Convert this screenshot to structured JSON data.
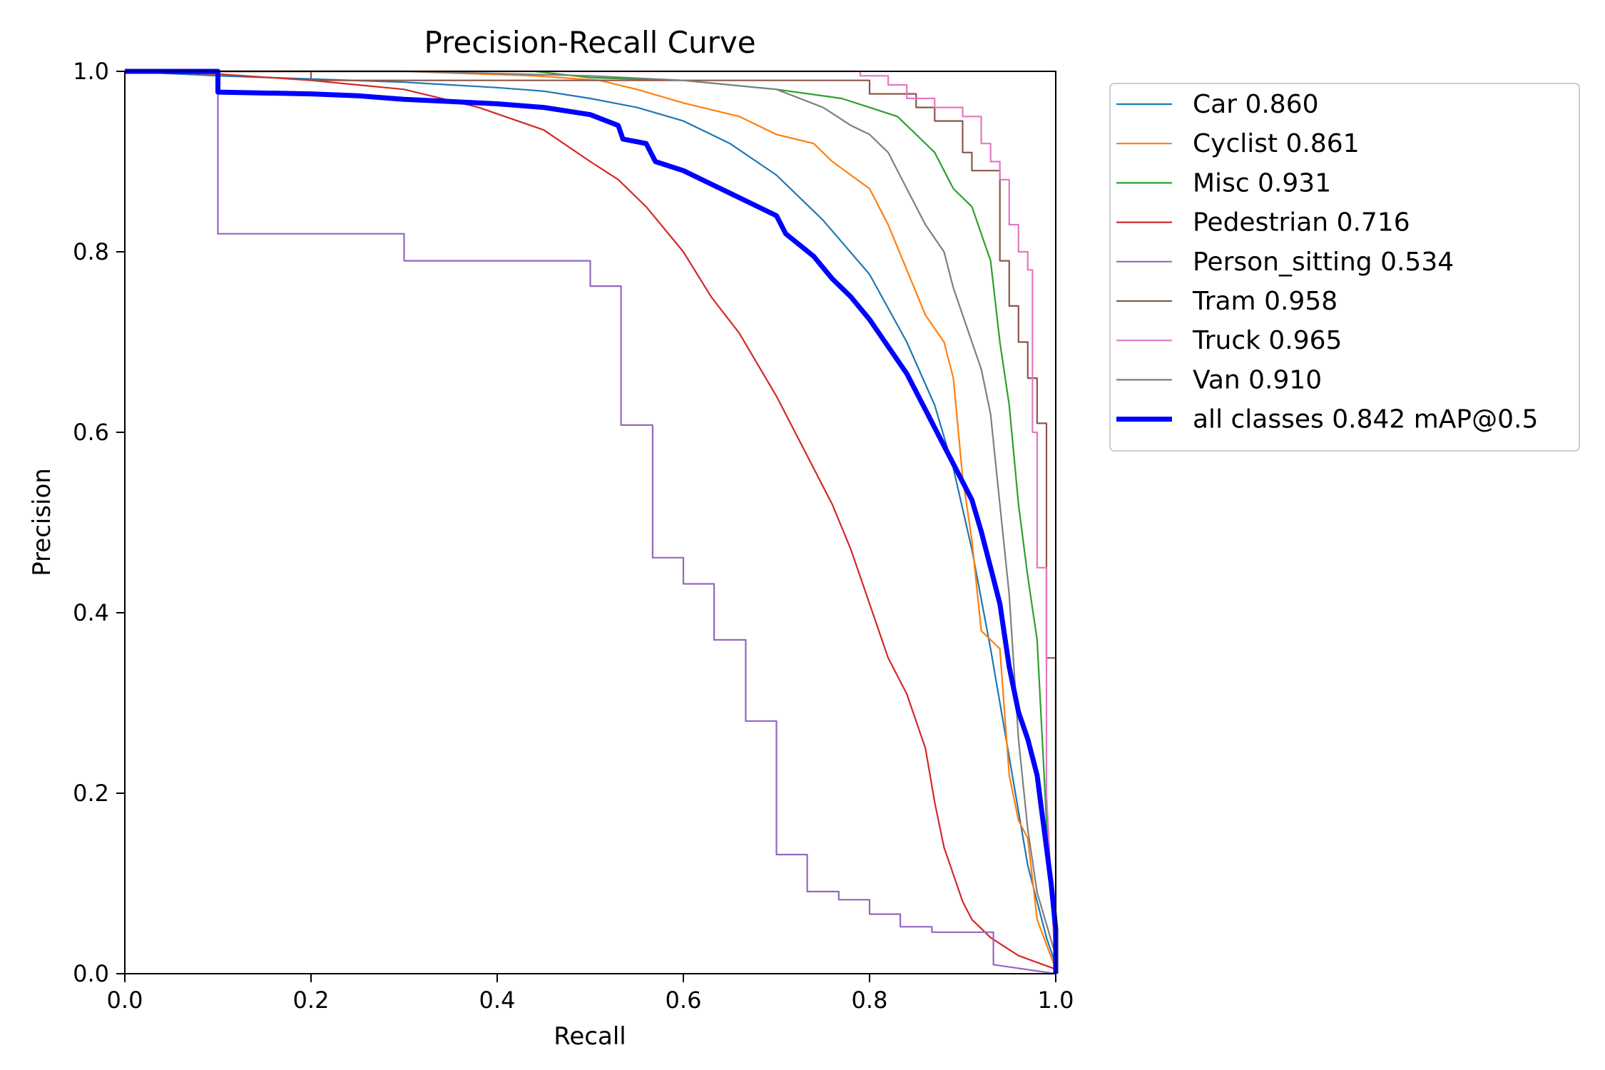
{
  "chart_data": {
    "type": "line",
    "title": "Precision-Recall Curve",
    "xlabel": "Recall",
    "ylabel": "Precision",
    "xlim": [
      0,
      1
    ],
    "ylim": [
      0,
      1
    ],
    "xticks": [
      "0.0",
      "0.2",
      "0.4",
      "0.6",
      "0.8",
      "1.0"
    ],
    "yticks": [
      "0.0",
      "0.2",
      "0.4",
      "0.6",
      "0.8",
      "1.0"
    ],
    "grid": false,
    "legend_position": "outside-right-top",
    "series": [
      {
        "name": "Car 0.860",
        "color": "#1f77b4",
        "line_width": "thin",
        "points": [
          [
            0,
            1.0
          ],
          [
            0.1,
            0.995
          ],
          [
            0.3,
            0.988
          ],
          [
            0.4,
            0.982
          ],
          [
            0.45,
            0.978
          ],
          [
            0.5,
            0.97
          ],
          [
            0.55,
            0.96
          ],
          [
            0.6,
            0.945
          ],
          [
            0.65,
            0.92
          ],
          [
            0.7,
            0.885
          ],
          [
            0.75,
            0.835
          ],
          [
            0.8,
            0.775
          ],
          [
            0.84,
            0.7
          ],
          [
            0.87,
            0.63
          ],
          [
            0.89,
            0.56
          ],
          [
            0.91,
            0.47
          ],
          [
            0.93,
            0.36
          ],
          [
            0.95,
            0.24
          ],
          [
            0.97,
            0.12
          ],
          [
            0.99,
            0.04
          ],
          [
            1.0,
            0.01
          ]
        ]
      },
      {
        "name": "Cyclist 0.861",
        "color": "#ff7f0e",
        "line_width": "thin",
        "points": [
          [
            0,
            1.0
          ],
          [
            0.3,
            1.0
          ],
          [
            0.44,
            0.995
          ],
          [
            0.51,
            0.99
          ],
          [
            0.55,
            0.98
          ],
          [
            0.6,
            0.965
          ],
          [
            0.66,
            0.95
          ],
          [
            0.7,
            0.93
          ],
          [
            0.74,
            0.92
          ],
          [
            0.76,
            0.9
          ],
          [
            0.8,
            0.87
          ],
          [
            0.82,
            0.83
          ],
          [
            0.84,
            0.78
          ],
          [
            0.86,
            0.73
          ],
          [
            0.88,
            0.7
          ],
          [
            0.89,
            0.66
          ],
          [
            0.9,
            0.55
          ],
          [
            0.91,
            0.48
          ],
          [
            0.92,
            0.38
          ],
          [
            0.94,
            0.36
          ],
          [
            0.95,
            0.22
          ],
          [
            0.96,
            0.17
          ],
          [
            0.97,
            0.15
          ],
          [
            0.98,
            0.06
          ],
          [
            1.0,
            0.005
          ]
        ]
      },
      {
        "name": "Misc 0.931",
        "color": "#2ca02c",
        "line_width": "thin",
        "points": [
          [
            0,
            1.0
          ],
          [
            0.44,
            1.0
          ],
          [
            0.5,
            0.993
          ],
          [
            0.6,
            0.99
          ],
          [
            0.7,
            0.98
          ],
          [
            0.77,
            0.97
          ],
          [
            0.8,
            0.96
          ],
          [
            0.83,
            0.95
          ],
          [
            0.85,
            0.93
          ],
          [
            0.87,
            0.91
          ],
          [
            0.89,
            0.87
          ],
          [
            0.91,
            0.85
          ],
          [
            0.93,
            0.79
          ],
          [
            0.94,
            0.7
          ],
          [
            0.95,
            0.63
          ],
          [
            0.96,
            0.52
          ],
          [
            0.97,
            0.44
          ],
          [
            0.98,
            0.37
          ],
          [
            0.99,
            0.17
          ],
          [
            1.0,
            0.01
          ]
        ]
      },
      {
        "name": "Pedestrian 0.716",
        "color": "#d62728",
        "line_width": "thin",
        "points": [
          [
            0,
            1.0
          ],
          [
            0.1,
            0.997
          ],
          [
            0.2,
            0.99
          ],
          [
            0.3,
            0.98
          ],
          [
            0.38,
            0.96
          ],
          [
            0.45,
            0.935
          ],
          [
            0.5,
            0.9
          ],
          [
            0.53,
            0.88
          ],
          [
            0.56,
            0.85
          ],
          [
            0.6,
            0.8
          ],
          [
            0.63,
            0.75
          ],
          [
            0.66,
            0.71
          ],
          [
            0.7,
            0.64
          ],
          [
            0.72,
            0.6
          ],
          [
            0.74,
            0.56
          ],
          [
            0.76,
            0.52
          ],
          [
            0.78,
            0.47
          ],
          [
            0.8,
            0.41
          ],
          [
            0.82,
            0.35
          ],
          [
            0.84,
            0.31
          ],
          [
            0.86,
            0.25
          ],
          [
            0.87,
            0.19
          ],
          [
            0.88,
            0.14
          ],
          [
            0.9,
            0.08
          ],
          [
            0.91,
            0.06
          ],
          [
            0.93,
            0.04
          ],
          [
            0.96,
            0.02
          ],
          [
            1.0,
            0.005
          ]
        ]
      },
      {
        "name": "Person_sitting 0.534",
        "color": "#9467bd",
        "line_width": "thin",
        "steps": true,
        "points": [
          [
            0,
            1.0
          ],
          [
            0.1,
            1.0
          ],
          [
            0.1,
            0.82
          ],
          [
            0.3,
            0.82
          ],
          [
            0.3,
            0.79
          ],
          [
            0.5,
            0.79
          ],
          [
            0.5,
            0.762
          ],
          [
            0.533,
            0.762
          ],
          [
            0.533,
            0.608
          ],
          [
            0.567,
            0.608
          ],
          [
            0.567,
            0.461
          ],
          [
            0.6,
            0.461
          ],
          [
            0.6,
            0.432
          ],
          [
            0.633,
            0.432
          ],
          [
            0.633,
            0.37
          ],
          [
            0.667,
            0.37
          ],
          [
            0.667,
            0.28
          ],
          [
            0.7,
            0.28
          ],
          [
            0.7,
            0.132
          ],
          [
            0.733,
            0.132
          ],
          [
            0.733,
            0.091
          ],
          [
            0.767,
            0.091
          ],
          [
            0.767,
            0.082
          ],
          [
            0.8,
            0.082
          ],
          [
            0.8,
            0.066
          ],
          [
            0.833,
            0.066
          ],
          [
            0.833,
            0.052
          ],
          [
            0.867,
            0.052
          ],
          [
            0.867,
            0.046
          ],
          [
            0.933,
            0.046
          ],
          [
            0.933,
            0.01
          ],
          [
            1.0,
            0.0
          ]
        ]
      },
      {
        "name": "Tram 0.958",
        "color": "#8c564b",
        "line_width": "thin",
        "steps": true,
        "points": [
          [
            0,
            1.0
          ],
          [
            0.2,
            1.0
          ],
          [
            0.2,
            0.99
          ],
          [
            0.8,
            0.99
          ],
          [
            0.8,
            0.975
          ],
          [
            0.85,
            0.975
          ],
          [
            0.85,
            0.96
          ],
          [
            0.87,
            0.96
          ],
          [
            0.87,
            0.945
          ],
          [
            0.9,
            0.945
          ],
          [
            0.9,
            0.91
          ],
          [
            0.91,
            0.91
          ],
          [
            0.91,
            0.89
          ],
          [
            0.94,
            0.89
          ],
          [
            0.94,
            0.79
          ],
          [
            0.95,
            0.79
          ],
          [
            0.95,
            0.74
          ],
          [
            0.96,
            0.74
          ],
          [
            0.96,
            0.7
          ],
          [
            0.97,
            0.7
          ],
          [
            0.97,
            0.66
          ],
          [
            0.98,
            0.66
          ],
          [
            0.98,
            0.61
          ],
          [
            0.99,
            0.61
          ],
          [
            0.99,
            0.35
          ],
          [
            1.0,
            0.35
          ],
          [
            1.0,
            0.0
          ]
        ]
      },
      {
        "name": "Truck 0.965",
        "color": "#e377c2",
        "line_width": "thin",
        "steps": true,
        "points": [
          [
            0,
            1.0
          ],
          [
            0.79,
            1.0
          ],
          [
            0.79,
            0.995
          ],
          [
            0.82,
            0.995
          ],
          [
            0.82,
            0.985
          ],
          [
            0.84,
            0.985
          ],
          [
            0.84,
            0.97
          ],
          [
            0.87,
            0.97
          ],
          [
            0.87,
            0.96
          ],
          [
            0.9,
            0.96
          ],
          [
            0.9,
            0.95
          ],
          [
            0.92,
            0.95
          ],
          [
            0.92,
            0.92
          ],
          [
            0.93,
            0.92
          ],
          [
            0.93,
            0.9
          ],
          [
            0.94,
            0.9
          ],
          [
            0.94,
            0.88
          ],
          [
            0.95,
            0.88
          ],
          [
            0.95,
            0.83
          ],
          [
            0.96,
            0.83
          ],
          [
            0.96,
            0.8
          ],
          [
            0.97,
            0.8
          ],
          [
            0.97,
            0.78
          ],
          [
            0.975,
            0.78
          ],
          [
            0.975,
            0.6
          ],
          [
            0.98,
            0.6
          ],
          [
            0.98,
            0.45
          ],
          [
            0.99,
            0.45
          ],
          [
            0.99,
            0.2
          ],
          [
            1.0,
            0.0
          ]
        ]
      },
      {
        "name": "Van 0.910",
        "color": "#7f7f7f",
        "line_width": "thin",
        "points": [
          [
            0,
            1.0
          ],
          [
            0.3,
            1.0
          ],
          [
            0.38,
            0.998
          ],
          [
            0.5,
            0.995
          ],
          [
            0.6,
            0.99
          ],
          [
            0.7,
            0.98
          ],
          [
            0.75,
            0.96
          ],
          [
            0.78,
            0.94
          ],
          [
            0.8,
            0.93
          ],
          [
            0.82,
            0.91
          ],
          [
            0.84,
            0.87
          ],
          [
            0.86,
            0.83
          ],
          [
            0.88,
            0.8
          ],
          [
            0.89,
            0.76
          ],
          [
            0.9,
            0.73
          ],
          [
            0.91,
            0.7
          ],
          [
            0.92,
            0.67
          ],
          [
            0.93,
            0.62
          ],
          [
            0.94,
            0.52
          ],
          [
            0.95,
            0.42
          ],
          [
            0.96,
            0.26
          ],
          [
            0.97,
            0.16
          ],
          [
            0.98,
            0.09
          ],
          [
            1.0,
            0.02
          ]
        ]
      },
      {
        "name": "all classes 0.842 mAP@0.5",
        "color": "#0000ff",
        "line_width": "thick",
        "points": [
          [
            0,
            1.0
          ],
          [
            0.1,
            1.0
          ],
          [
            0.1,
            0.977
          ],
          [
            0.2,
            0.975
          ],
          [
            0.25,
            0.973
          ],
          [
            0.3,
            0.969
          ],
          [
            0.4,
            0.964
          ],
          [
            0.45,
            0.96
          ],
          [
            0.5,
            0.952
          ],
          [
            0.53,
            0.94
          ],
          [
            0.535,
            0.925
          ],
          [
            0.56,
            0.92
          ],
          [
            0.57,
            0.9
          ],
          [
            0.6,
            0.89
          ],
          [
            0.63,
            0.875
          ],
          [
            0.65,
            0.865
          ],
          [
            0.67,
            0.855
          ],
          [
            0.7,
            0.84
          ],
          [
            0.71,
            0.82
          ],
          [
            0.74,
            0.795
          ],
          [
            0.76,
            0.77
          ],
          [
            0.78,
            0.75
          ],
          [
            0.8,
            0.725
          ],
          [
            0.82,
            0.695
          ],
          [
            0.84,
            0.665
          ],
          [
            0.86,
            0.625
          ],
          [
            0.88,
            0.585
          ],
          [
            0.89,
            0.565
          ],
          [
            0.9,
            0.545
          ],
          [
            0.91,
            0.525
          ],
          [
            0.92,
            0.49
          ],
          [
            0.93,
            0.45
          ],
          [
            0.94,
            0.41
          ],
          [
            0.95,
            0.34
          ],
          [
            0.96,
            0.29
          ],
          [
            0.97,
            0.26
          ],
          [
            0.98,
            0.22
          ],
          [
            0.985,
            0.18
          ],
          [
            0.99,
            0.14
          ],
          [
            0.995,
            0.1
          ],
          [
            1.0,
            0.05
          ],
          [
            1.0,
            0.0
          ]
        ]
      }
    ]
  }
}
